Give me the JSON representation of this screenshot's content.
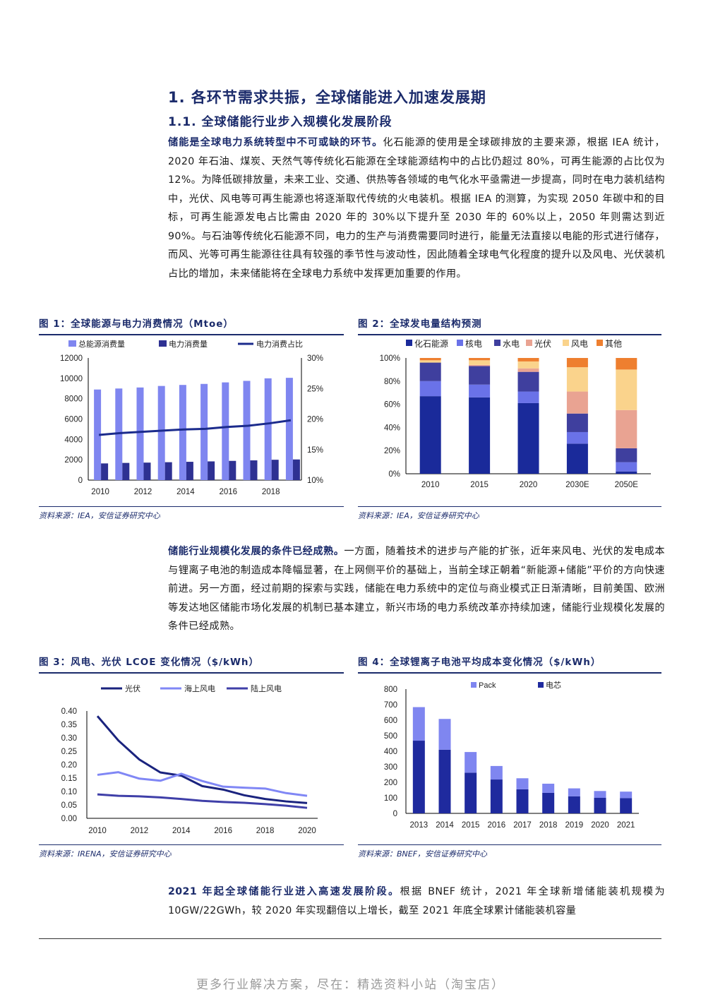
{
  "heading1": "1. 各环节需求共振，全球储能进入加速发展期",
  "heading2": "1.1. 全球储能行业步入规模化发展阶段",
  "para1": {
    "bold": "储能是全球电力系统转型中不可或缺的环节。",
    "text": "化石能源的使用是全球碳排放的主要来源，根据 IEA 统计，2020 年石油、煤炭、天然气等传统化石能源在全球能源结构中的占比仍超过 80%，可再生能源的占比仅为 12%。为降低碳排放量，未来工业、交通、供热等各领域的电气化水平亟需进一步提高，同时在电力装机结构中，光伏、风电等可再生能源也将逐渐取代传统的火电装机。根据 IEA 的测算，为实现 2050 年碳中和的目标，可再生能源发电占比需由 2020 年的 30%以下提升至 2030 年的 60%以上，2050 年则需达到近 90%。与石油等传统化石能源不同，电力的生产与消费需要同时进行，能量无法直接以电能的形式进行储存，而风、光等可再生能源往往具有较强的季节性与波动性，因此随着全球电气化程度的提升以及风电、光伏装机占比的增加，未来储能将在全球电力系统中发挥更加重要的作用。"
  },
  "para2": {
    "bold": "储能行业规模化发展的条件已经成熟。",
    "text": "一方面，随着技术的进步与产能的扩张，近年来风电、光伏的发电成本与锂离子电池的制造成本降幅显著，在上网侧平价的基础上，当前全球正朝着“新能源+储能”平价的方向快速前进。另一方面，经过前期的探索与实践，储能在电力系统中的定位与商业模式正日渐清晰，目前美国、欧洲等发达地区储能市场化发展的机制已基本建立，新兴市场的电力系统改革亦持续加速，储能行业规模化发展的条件已经成熟。"
  },
  "para3": {
    "bold": "2021 年起全球储能行业进入高速发展阶段。",
    "text": "根据 BNEF 统计，2021 年全球新增储能装机规模为 10GW/22GWh，较 2020 年实现翻倍以上增长，截至 2021 年底全球累计储能装机容量"
  },
  "fig1": {
    "title": "图 1：全球能源与电力消费情况（Mtoe）",
    "source": "资料来源：IEA，安信证券研究中心"
  },
  "fig2": {
    "title": "图 2：全球发电量结构预测",
    "source": "资料来源：IEA，安信证券研究中心"
  },
  "fig3": {
    "title": "图 3：风电、光伏 LCOE 变化情况（$/kWh）",
    "source": "资料来源：IRENA，安信证券研究中心"
  },
  "fig4": {
    "title": "图 4：全球锂离子电池平均成本变化情况（$/kWh）",
    "source": "资料来源：BNEF，安信证券研究中心"
  },
  "footer": "更多行业解决方案，尽在：精选资料小站（淘宝店）",
  "chart_data": [
    {
      "type": "bar",
      "id": "fig1",
      "x": [
        2010,
        2011,
        2012,
        2013,
        2014,
        2015,
        2016,
        2017,
        2018,
        2019
      ],
      "xticks": [
        "2010",
        "2012",
        "2014",
        "2016",
        "2018"
      ],
      "series": [
        {
          "name": "总能源消费量",
          "type": "bar",
          "color": "#7f86f0",
          "values": [
            8900,
            9000,
            9100,
            9250,
            9350,
            9450,
            9600,
            9750,
            10000,
            10050
          ]
        },
        {
          "name": "电力消费量",
          "type": "bar",
          "color": "#2e3192",
          "values": [
            1640,
            1690,
            1720,
            1760,
            1800,
            1840,
            1890,
            1940,
            2000,
            2030
          ]
        },
        {
          "name": "电力消费占比",
          "type": "line",
          "axis": "right",
          "color": "#1b2b8c",
          "values": [
            17.4,
            17.7,
            17.9,
            18.1,
            18.3,
            18.4,
            18.7,
            18.9,
            19.3,
            19.8
          ]
        }
      ],
      "ylim": [
        0,
        12000
      ],
      "yticks": [
        "0",
        "2000",
        "4000",
        "6000",
        "8000",
        "10000",
        "12000"
      ],
      "y2lim": [
        10,
        30
      ],
      "y2ticks": [
        "10%",
        "15%",
        "20%",
        "25%",
        "30%"
      ],
      "legend": "top"
    },
    {
      "type": "bar",
      "stacked": true,
      "id": "fig2",
      "categories": [
        "2010",
        "2015",
        "2020",
        "2030E",
        "2050E"
      ],
      "series": [
        {
          "name": "化石能源",
          "color": "#1a2a9a",
          "values": [
            67,
            66,
            61,
            26,
            2
          ]
        },
        {
          "name": "核电",
          "color": "#6a72e8",
          "values": [
            13,
            11,
            10,
            10,
            8
          ]
        },
        {
          "name": "水电",
          "color": "#3f3f9e",
          "values": [
            16,
            16,
            17,
            16,
            12
          ]
        },
        {
          "name": "光伏",
          "color": "#e9a392",
          "values": [
            0,
            1,
            3,
            19,
            33
          ]
        },
        {
          "name": "风电",
          "color": "#fad38c",
          "values": [
            2,
            4,
            6,
            21,
            35
          ]
        },
        {
          "name": "其他",
          "color": "#ee7f2f",
          "values": [
            2,
            2,
            3,
            8,
            10
          ]
        }
      ],
      "ylim": [
        0,
        100
      ],
      "yticks": [
        "0%",
        "20%",
        "40%",
        "60%",
        "80%",
        "100%"
      ],
      "legend": "top"
    },
    {
      "type": "line",
      "id": "fig3",
      "x": [
        2010,
        2011,
        2012,
        2013,
        2014,
        2015,
        2016,
        2017,
        2018,
        2019,
        2020
      ],
      "xticks": [
        "2010",
        "2012",
        "2014",
        "2016",
        "2018",
        "2020"
      ],
      "series": [
        {
          "name": "光伏",
          "color": "#1a237e",
          "values": [
            0.381,
            0.29,
            0.219,
            0.171,
            0.159,
            0.12,
            0.107,
            0.086,
            0.072,
            0.063,
            0.057
          ]
        },
        {
          "name": "海上风电",
          "color": "#8087f5",
          "values": [
            0.162,
            0.172,
            0.148,
            0.14,
            0.166,
            0.139,
            0.118,
            0.114,
            0.111,
            0.094,
            0.084
          ]
        },
        {
          "name": "陆上风电",
          "color": "#3f3fa8",
          "values": [
            0.089,
            0.084,
            0.082,
            0.078,
            0.072,
            0.065,
            0.061,
            0.058,
            0.053,
            0.047,
            0.039
          ]
        }
      ],
      "ylim": [
        0,
        0.4
      ],
      "yticks": [
        "0.00",
        "0.05",
        "0.10",
        "0.15",
        "0.20",
        "0.25",
        "0.30",
        "0.35",
        "0.40"
      ],
      "legend": "top"
    },
    {
      "type": "bar",
      "stacked": true,
      "id": "fig4",
      "categories": [
        "2013",
        "2014",
        "2015",
        "2016",
        "2017",
        "2018",
        "2019",
        "2020",
        "2021"
      ],
      "series": [
        {
          "name": "电芯",
          "color": "#1f2a9e",
          "values": [
            468,
            410,
            262,
            218,
            155,
            132,
            110,
            100,
            98
          ]
        },
        {
          "name": "Pack",
          "color": "#7f86f0",
          "values": [
            216,
            198,
            133,
            87,
            71,
            59,
            51,
            44,
            42
          ]
        }
      ],
      "legend_order": [
        "Pack",
        "电芯"
      ],
      "ylim": [
        0,
        800
      ],
      "yticks": [
        "0",
        "100",
        "200",
        "300",
        "400",
        "500",
        "600",
        "700",
        "800"
      ],
      "legend": "top"
    }
  ]
}
